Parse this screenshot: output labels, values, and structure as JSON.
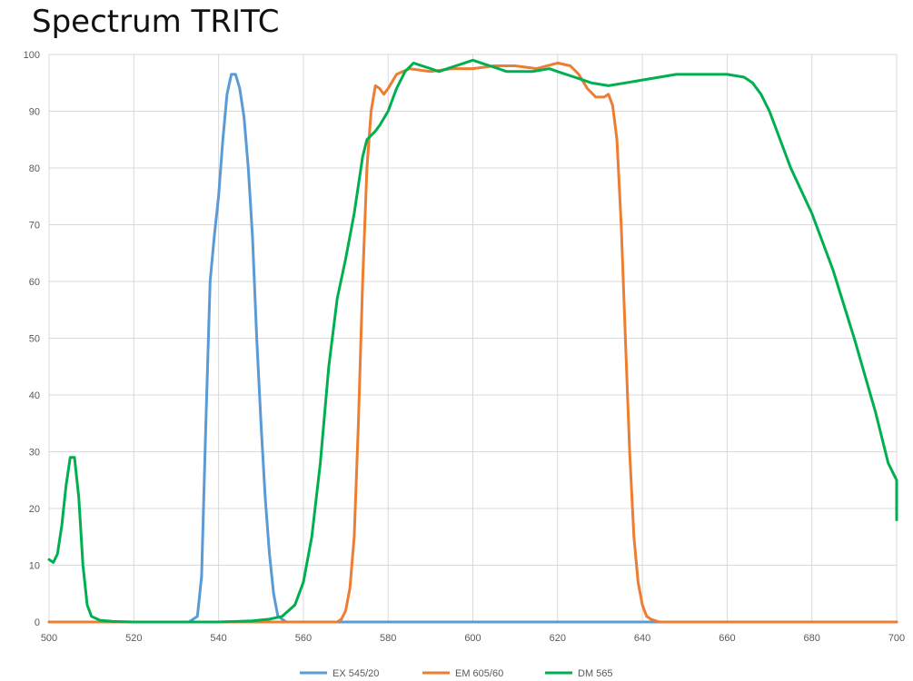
{
  "chart_data": {
    "type": "line",
    "title": "Spectrum TRITC",
    "xlabel": "",
    "ylabel": "",
    "xlim": [
      500,
      700
    ],
    "ylim": [
      0,
      100
    ],
    "x_ticks": [
      500,
      520,
      540,
      560,
      580,
      600,
      620,
      640,
      660,
      680,
      700
    ],
    "y_ticks": [
      0,
      10,
      20,
      30,
      40,
      50,
      60,
      70,
      80,
      90,
      100
    ],
    "grid": true,
    "legend_position": "bottom",
    "series": [
      {
        "name": "EX 545/20",
        "color": "#5B9BD5",
        "points": [
          [
            500,
            0
          ],
          [
            533,
            0
          ],
          [
            535,
            1
          ],
          [
            536,
            8
          ],
          [
            537,
            35
          ],
          [
            538,
            60
          ],
          [
            539,
            68
          ],
          [
            540,
            75
          ],
          [
            541,
            85
          ],
          [
            542,
            93
          ],
          [
            543,
            96.5
          ],
          [
            544,
            96.5
          ],
          [
            545,
            94
          ],
          [
            546,
            89
          ],
          [
            547,
            80
          ],
          [
            548,
            68
          ],
          [
            549,
            50
          ],
          [
            550,
            35
          ],
          [
            551,
            22
          ],
          [
            552,
            12
          ],
          [
            553,
            5
          ],
          [
            554,
            1
          ],
          [
            556,
            0
          ],
          [
            700,
            0
          ]
        ]
      },
      {
        "name": "EM 605/60",
        "color": "#ED7D31",
        "points": [
          [
            500,
            0
          ],
          [
            568,
            0
          ],
          [
            569,
            0.5
          ],
          [
            570,
            2
          ],
          [
            571,
            6
          ],
          [
            572,
            15
          ],
          [
            573,
            35
          ],
          [
            574,
            60
          ],
          [
            575,
            80
          ],
          [
            576,
            90
          ],
          [
            577,
            94.5
          ],
          [
            578,
            94
          ],
          [
            579,
            93
          ],
          [
            580,
            94
          ],
          [
            582,
            96.5
          ],
          [
            585,
            97.5
          ],
          [
            590,
            97
          ],
          [
            595,
            97.5
          ],
          [
            600,
            97.5
          ],
          [
            605,
            98
          ],
          [
            610,
            98
          ],
          [
            615,
            97.5
          ],
          [
            620,
            98.5
          ],
          [
            623,
            98
          ],
          [
            625,
            96.5
          ],
          [
            627,
            94
          ],
          [
            629,
            92.5
          ],
          [
            631,
            92.5
          ],
          [
            632,
            93
          ],
          [
            633,
            91
          ],
          [
            634,
            85
          ],
          [
            635,
            70
          ],
          [
            636,
            50
          ],
          [
            637,
            30
          ],
          [
            638,
            15
          ],
          [
            639,
            7
          ],
          [
            640,
            3
          ],
          [
            641,
            1
          ],
          [
            642,
            0.5
          ],
          [
            644,
            0
          ],
          [
            700,
            0
          ]
        ]
      },
      {
        "name": "DM 565",
        "color": "#00B050",
        "points": [
          [
            500,
            11
          ],
          [
            501,
            10.5
          ],
          [
            502,
            12
          ],
          [
            503,
            17
          ],
          [
            504,
            24
          ],
          [
            505,
            29
          ],
          [
            506,
            29
          ],
          [
            507,
            22
          ],
          [
            508,
            10
          ],
          [
            509,
            3
          ],
          [
            510,
            1
          ],
          [
            512,
            0.3
          ],
          [
            515,
            0.1
          ],
          [
            520,
            0
          ],
          [
            530,
            0
          ],
          [
            540,
            0
          ],
          [
            548,
            0.2
          ],
          [
            552,
            0.5
          ],
          [
            555,
            1
          ],
          [
            558,
            3
          ],
          [
            560,
            7
          ],
          [
            562,
            15
          ],
          [
            564,
            28
          ],
          [
            566,
            45
          ],
          [
            568,
            57
          ],
          [
            570,
            64
          ],
          [
            572,
            72
          ],
          [
            574,
            82
          ],
          [
            575,
            85
          ],
          [
            577,
            86.5
          ],
          [
            578,
            87.5
          ],
          [
            580,
            90
          ],
          [
            582,
            94
          ],
          [
            584,
            97
          ],
          [
            586,
            98.5
          ],
          [
            588,
            98
          ],
          [
            590,
            97.5
          ],
          [
            592,
            97
          ],
          [
            594,
            97.5
          ],
          [
            596,
            98
          ],
          [
            598,
            98.5
          ],
          [
            600,
            99
          ],
          [
            602,
            98.5
          ],
          [
            604,
            98
          ],
          [
            606,
            97.5
          ],
          [
            608,
            97
          ],
          [
            610,
            97
          ],
          [
            614,
            97
          ],
          [
            618,
            97.5
          ],
          [
            620,
            97
          ],
          [
            624,
            96
          ],
          [
            628,
            95
          ],
          [
            632,
            94.5
          ],
          [
            636,
            95
          ],
          [
            640,
            95.5
          ],
          [
            644,
            96
          ],
          [
            648,
            96.5
          ],
          [
            652,
            96.5
          ],
          [
            656,
            96.5
          ],
          [
            660,
            96.5
          ],
          [
            664,
            96
          ],
          [
            666,
            95
          ],
          [
            668,
            93
          ],
          [
            670,
            90
          ],
          [
            672,
            86
          ],
          [
            675,
            80
          ],
          [
            680,
            72
          ],
          [
            685,
            62
          ],
          [
            690,
            50
          ],
          [
            695,
            37
          ],
          [
            698,
            28
          ],
          [
            700,
            25
          ],
          [
            700,
            18
          ]
        ]
      }
    ]
  }
}
